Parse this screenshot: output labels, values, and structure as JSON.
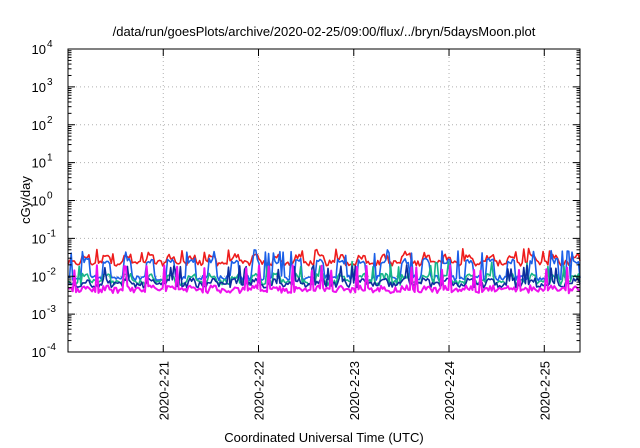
{
  "chart_data": {
    "type": "line",
    "title": "/data/run/goesPlots/archive/2020-02-25/09:00/flux/../bryn/5daysMoon.plot",
    "xlabel": "Coordinated Universal Time (UTC)",
    "ylabel": "cGy/day",
    "yscale": "log",
    "ylim": [
      0.0001,
      10000
    ],
    "xlim": [
      "2020-02-20T00:00",
      "2020-02-25T09:00"
    ],
    "grid": true,
    "y_ticks": [
      {
        "base": "10",
        "exp": "-4"
      },
      {
        "base": "10",
        "exp": "-3"
      },
      {
        "base": "10",
        "exp": "-2"
      },
      {
        "base": "10",
        "exp": "-1"
      },
      {
        "base": "10",
        "exp": "0"
      },
      {
        "base": "10",
        "exp": "1"
      },
      {
        "base": "10",
        "exp": "2"
      },
      {
        "base": "10",
        "exp": "3"
      },
      {
        "base": "10",
        "exp": "4"
      }
    ],
    "x_ticks": [
      "2020-2-21",
      "2020-2-22",
      "2020-2-23",
      "2020-2-24",
      "2020-2-25"
    ],
    "series": [
      {
        "color": "#ee1c1c",
        "base": 0.032,
        "pulse_low": 0.022,
        "spike_high": 0.055
      },
      {
        "color": "#1a5fe8",
        "base": 0.025,
        "pulse_low": 0.009,
        "spike_high": 0.05
      },
      {
        "color": "#17b589",
        "base": 0.01,
        "pulse_low": 0.0068,
        "spike_high": 0.025
      },
      {
        "color": "#0d2d9e",
        "base": 0.0075,
        "pulse_low": 0.0058,
        "spike_high": 0.02
      },
      {
        "color": "#ee11ee",
        "base": 0.0048,
        "pulse_low": 0.0042,
        "spike_high": 0.02
      }
    ]
  }
}
